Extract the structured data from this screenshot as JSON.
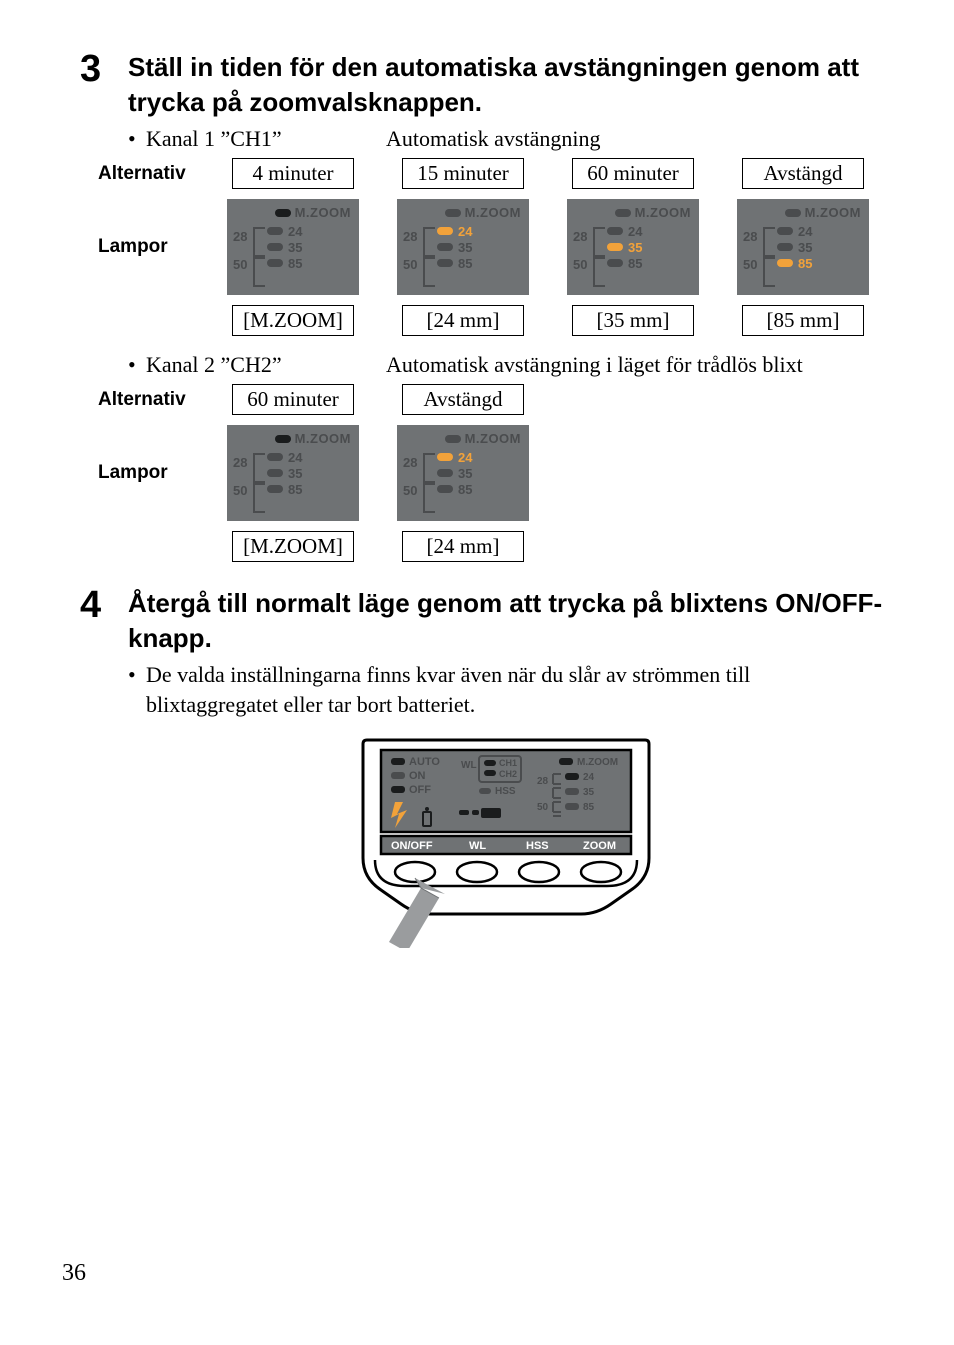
{
  "page_number": "36",
  "step3": {
    "number": "3",
    "title": "Ställ in tiden för den automatiska avstängningen genom att trycka på zoomvalsknappen.",
    "ch1": {
      "bullet_left": "Kanal 1 ”CH1”",
      "bullet_right": "Automatisk avstängning",
      "label_alt": "Alternativ",
      "label_lamp": "Lampor",
      "options": [
        "4 minuter",
        "15 minuter",
        "60 minuter",
        "Avstängd"
      ],
      "captions": [
        "[M.ZOOM]",
        "[24 mm]",
        "[35 mm]",
        "[85 mm]"
      ],
      "lamp_label": "M.ZOOM",
      "zoom_vals": [
        "24",
        "35",
        "85"
      ],
      "side_nums": [
        "28",
        "50"
      ],
      "lamp_states": [
        {
          "mz": true,
          "on": []
        },
        {
          "mz": false,
          "on": [
            0
          ]
        },
        {
          "mz": false,
          "on": [
            1
          ]
        },
        {
          "mz": false,
          "on": [
            2
          ]
        }
      ]
    },
    "ch2": {
      "bullet_left": "Kanal 2 ”CH2”",
      "bullet_right": "Automatisk avstängning i läget för trådlös blixt",
      "label_alt": "Alternativ",
      "label_lamp": "Lampor",
      "options": [
        "60 minuter",
        "Avstängd"
      ],
      "captions": [
        "[M.ZOOM]",
        "[24 mm]"
      ],
      "lamp_label": "M.ZOOM",
      "zoom_vals": [
        "24",
        "35",
        "85"
      ],
      "side_nums": [
        "28",
        "50"
      ],
      "lamp_states": [
        {
          "mz": true,
          "on": []
        },
        {
          "mz": false,
          "on": [
            0
          ]
        }
      ]
    }
  },
  "step4": {
    "number": "4",
    "title": "Återgå till normalt läge genom att trycka på blixtens ON/OFF-knapp.",
    "bullet": "De valda inställningarna finns kvar även när du slår av strömmen till blixtaggregatet eller tar bort batteriet.",
    "device": {
      "labels": {
        "auto": "AUTO",
        "on": "ON",
        "off": "OFF",
        "wl": "WL",
        "ch1": "CH1",
        "ch2": "CH2",
        "hss": "HSS",
        "mzoom": "M.ZOOM",
        "n28": "28",
        "n50": "50",
        "v24": "24",
        "v35": "35",
        "v85": "85",
        "btn_onoff": "ON/OFF",
        "btn_wl": "WL",
        "btn_hss": "HSS",
        "btn_zoom": "ZOOM"
      }
    }
  },
  "colors": {
    "panel_bg": "#6f7274",
    "dim": "#4a4c4e",
    "lit": "#f2a23a",
    "dark_pill": "#1a1c1d"
  }
}
